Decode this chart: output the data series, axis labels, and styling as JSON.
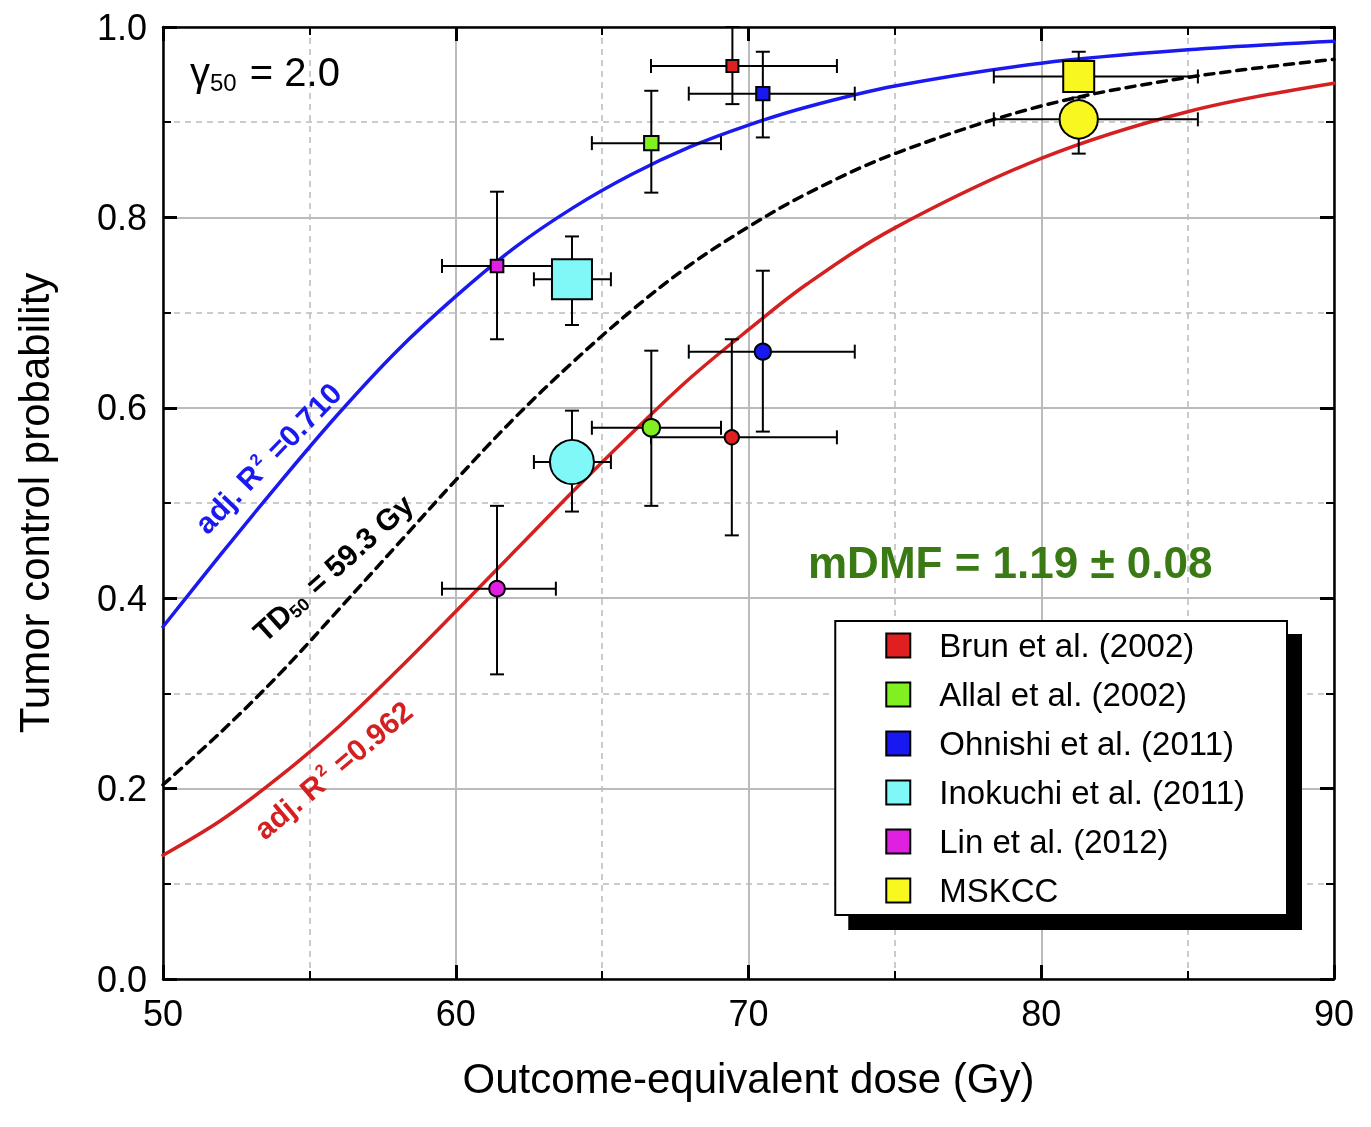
{
  "chart_data": {
    "type": "bubble",
    "xlabel": "Outcome-equivalent dose (Gy)",
    "ylabel": "Tumor control probability",
    "xlim": [
      50,
      90
    ],
    "xticks": [
      50,
      60,
      70,
      80,
      90
    ],
    "ylim": [
      0,
      1
    ],
    "yticks": [
      {
        "value": 0,
        "label": "0.0"
      },
      0.2,
      0.4,
      0.6,
      0.8,
      {
        "value": 1,
        "label": "1.0"
      }
    ],
    "grid": true,
    "legend": "bottom right",
    "annotations": [
      "γ$_{50}$ = 2.0",
      "mDMF = 1.19 ± 0.08",
      "adj. R$^{2}$ =0.710",
      "TD$_{50}$ = 59.3 Gy",
      "adj. R$^{2}$ =0.962"
    ],
    "series": [
      {
        "name": "Brun et al. (2002)",
        "color": "#e02020",
        "marker": "square",
        "x": [
          69.45
        ],
        "values": [
          0.959
        ],
        "sizes": [
          0.09
        ],
        "xerrors": [
          [
            66.67,
            73.02
          ]
        ],
        "errors": [
          [
            0.919,
            1.0
          ]
        ]
      },
      {
        "name": "Allal et al. (2002)",
        "color": "#80f020",
        "marker": "square",
        "x": [
          66.68
        ],
        "values": [
          0.878
        ],
        "sizes": [
          0.13
        ],
        "xerrors": [
          [
            64.65,
            69.06
          ]
        ],
        "errors": [
          [
            0.826,
            0.933
          ]
        ]
      },
      {
        "name": "Ohnishi et al. (2011)",
        "color": "#1818f0",
        "marker": "square",
        "x": [
          70.49
        ],
        "values": [
          0.93
        ],
        "sizes": [
          0.11
        ],
        "xerrors": [
          [
            67.96,
            73.63
          ]
        ],
        "errors": [
          [
            0.884,
            0.974
          ]
        ]
      },
      {
        "name": "Inokuchi et al. (2011)",
        "color": "#80f8f8",
        "marker": "square",
        "x": [
          63.97
        ],
        "values": [
          0.735
        ],
        "sizes": [
          1
        ],
        "xerrors": [
          [
            62.67,
            65.3
          ]
        ],
        "errors": [
          [
            0.687,
            0.78
          ]
        ]
      },
      {
        "name": "Lin et al. (2012)",
        "color": "#e020e0",
        "marker": "square",
        "x": [
          61.41
        ],
        "values": [
          0.749
        ],
        "sizes": [
          0.1
        ],
        "xerrors": [
          [
            59.53,
            63.42
          ]
        ],
        "errors": [
          [
            0.672,
            0.827
          ]
        ]
      },
      {
        "name": "MSKCC",
        "color": "#f8f820",
        "marker": "square",
        "x": [
          81.28
        ],
        "values": [
          0.948
        ],
        "sizes": [
          0.6
        ],
        "xerrors": [
          [
            78.38,
            85.35
          ]
        ],
        "errors": [
          [
            0.948,
            0.974
          ]
        ]
      },
      {
        "color": "#e02020",
        "marker": "circle",
        "x": [
          69.43
        ],
        "values": [
          0.569
        ],
        "sizes": [
          0.1
        ],
        "xerrors": [
          [
            66.67,
            73.02
          ]
        ],
        "errors": [
          [
            0.466,
            0.672
          ]
        ]
      },
      {
        "color": "#80f020",
        "marker": "circle",
        "x": [
          66.68
        ],
        "values": [
          0.579
        ],
        "sizes": [
          0.15
        ],
        "xerrors": [
          [
            64.65,
            69.06
          ]
        ],
        "errors": [
          [
            0.497,
            0.66
          ]
        ]
      },
      {
        "color": "#1818f0",
        "marker": "circle",
        "x": [
          70.49
        ],
        "values": [
          0.659
        ],
        "sizes": [
          0.13
        ],
        "xerrors": [
          [
            67.96,
            73.63
          ]
        ],
        "errors": [
          [
            0.575,
            0.744
          ]
        ]
      },
      {
        "color": "#80f8f8",
        "marker": "circle",
        "x": [
          63.97
        ],
        "values": [
          0.543
        ],
        "sizes": [
          0.95
        ],
        "xerrors": [
          [
            62.67,
            65.3
          ]
        ],
        "errors": [
          [
            0.491,
            0.597
          ]
        ]
      },
      {
        "color": "#e020e0",
        "marker": "circle",
        "x": [
          61.41
        ],
        "values": [
          0.41
        ],
        "sizes": [
          0.12
        ],
        "xerrors": [
          [
            59.53,
            63.42
          ]
        ],
        "errors": [
          [
            0.32,
            0.497
          ]
        ]
      },
      {
        "color": "#f8f820",
        "marker": "circle",
        "x": [
          81.28
        ],
        "values": [
          0.903
        ],
        "sizes": [
          0.72
        ],
        "xerrors": [
          [
            78.38,
            85.35
          ]
        ],
        "errors": [
          [
            0.867,
            0.926
          ]
        ]
      },
      {
        "type": "line",
        "color": "#1a1af0",
        "line_style": "solid",
        "marker": "none",
        "x": [
          50,
          52,
          54,
          56,
          58,
          60,
          62,
          64,
          66,
          68,
          70,
          72,
          75,
          80,
          85,
          90
        ],
        "values": [
          0.37,
          0.447,
          0.522,
          0.594,
          0.66,
          0.717,
          0.768,
          0.81,
          0.845,
          0.874,
          0.897,
          0.916,
          0.938,
          0.962,
          0.976,
          0.985
        ]
      },
      {
        "type": "line",
        "color": "#000000",
        "line_style": "dashed",
        "marker": "none",
        "x": [
          50,
          52,
          54,
          56,
          58,
          60,
          62,
          64,
          66,
          68,
          70,
          72,
          75,
          80,
          85,
          90
        ],
        "values": [
          0.204,
          0.26,
          0.321,
          0.388,
          0.456,
          0.524,
          0.589,
          0.648,
          0.702,
          0.75,
          0.79,
          0.825,
          0.867,
          0.917,
          0.947,
          0.966
        ]
      },
      {
        "type": "line",
        "color": "#d42020",
        "line_style": "solid",
        "marker": "none",
        "x": [
          50,
          52,
          54,
          56,
          58,
          60,
          62,
          64,
          66,
          68,
          70,
          72,
          75,
          80,
          85,
          90
        ],
        "values": [
          0.13,
          0.167,
          0.213,
          0.265,
          0.324,
          0.386,
          0.449,
          0.512,
          0.573,
          0.631,
          0.682,
          0.73,
          0.789,
          0.862,
          0.911,
          0.941
        ]
      }
    ]
  }
}
